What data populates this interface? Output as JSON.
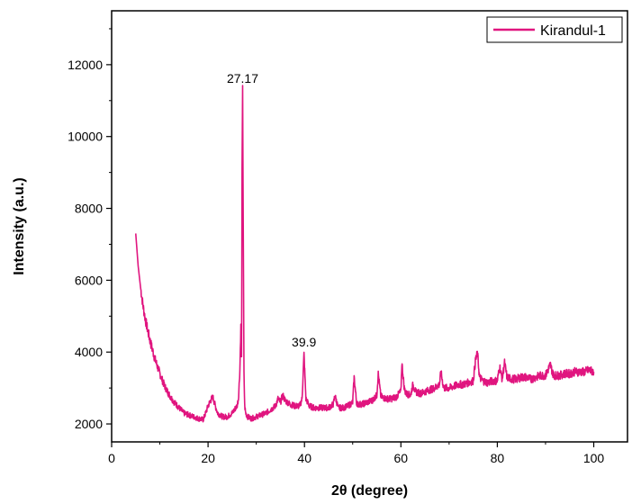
{
  "chart_data": {
    "type": "line",
    "title": "",
    "xlabel": "2θ (degree)",
    "ylabel": "Intensity (a.u.)",
    "xlim": [
      0,
      107
    ],
    "ylim": [
      1500,
      13500
    ],
    "xticks": [
      0,
      20,
      40,
      60,
      80,
      100
    ],
    "yticks": [
      2000,
      4000,
      6000,
      8000,
      10000,
      12000
    ],
    "xtick_labels": [
      "0",
      "20",
      "40",
      "60",
      "80",
      "100"
    ],
    "ytick_labels": [
      "2000",
      "4000",
      "6000",
      "8000",
      "10000",
      "12000"
    ],
    "grid": false,
    "legend_position": "top-right",
    "color": "#e0157f",
    "series": [
      {
        "name": "Kirandul-1",
        "x": [
          5,
          5.5,
          6,
          6.5,
          7,
          7.5,
          8,
          8.5,
          9,
          9.5,
          10,
          11,
          12,
          13,
          14,
          15,
          16,
          17,
          18,
          19,
          19.5,
          20,
          20.5,
          21,
          21.5,
          22,
          23,
          24,
          25,
          25.5,
          26,
          26.3,
          26.6,
          26.8,
          26.95,
          27.05,
          27.17,
          27.3,
          27.45,
          27.6,
          27.8,
          28.2,
          29,
          30,
          31,
          32,
          33,
          34,
          34.5,
          35,
          35.5,
          36,
          36.5,
          37,
          38,
          39,
          39.5,
          39.9,
          40.3,
          41,
          42,
          43,
          44,
          45,
          46,
          46.3,
          46.8,
          47,
          48,
          49,
          50,
          50.3,
          50.8,
          51,
          52,
          53,
          54,
          55,
          55.3,
          55.8,
          56,
          57,
          58,
          59,
          60,
          60.2,
          60.7,
          61,
          62,
          62.5,
          63,
          64,
          65,
          66,
          67,
          68,
          68.3,
          68.8,
          69,
          70,
          71,
          72,
          73,
          74,
          75,
          75.5,
          75.9,
          76.3,
          77,
          78,
          79,
          80,
          80.5,
          81,
          81.5,
          82,
          83,
          84,
          85,
          86,
          87,
          88,
          89,
          90,
          90.5,
          91,
          91.5,
          92,
          93,
          94,
          95,
          96,
          97,
          98,
          99,
          100
        ],
        "y": [
          7300,
          6400,
          5800,
          5300,
          4900,
          4600,
          4300,
          4050,
          3800,
          3600,
          3400,
          3050,
          2800,
          2600,
          2450,
          2300,
          2250,
          2200,
          2150,
          2120,
          2300,
          2500,
          2650,
          2750,
          2500,
          2300,
          2200,
          2200,
          2300,
          2400,
          2500,
          2700,
          3500,
          4700,
          3800,
          9000,
          11300,
          7500,
          3400,
          2500,
          2300,
          2200,
          2150,
          2200,
          2250,
          2300,
          2400,
          2500,
          2700,
          2600,
          2800,
          2650,
          2600,
          2550,
          2500,
          2500,
          2700,
          3950,
          2700,
          2500,
          2450,
          2450,
          2450,
          2450,
          2550,
          2800,
          2550,
          2450,
          2450,
          2500,
          2600,
          3300,
          2600,
          2550,
          2550,
          2600,
          2650,
          2800,
          3400,
          2800,
          2750,
          2700,
          2700,
          2750,
          2900,
          3700,
          3000,
          2850,
          2800,
          3100,
          2900,
          2850,
          2900,
          2950,
          3000,
          3100,
          3450,
          3050,
          3000,
          3000,
          3050,
          3100,
          3100,
          3150,
          3200,
          3800,
          3950,
          3300,
          3200,
          3150,
          3200,
          3200,
          3600,
          3250,
          3700,
          3300,
          3250,
          3250,
          3300,
          3300,
          3250,
          3300,
          3350,
          3350,
          3500,
          3650,
          3400,
          3350,
          3350,
          3400,
          3400,
          3450,
          3450,
          3450,
          3500,
          3450
        ]
      }
    ],
    "annotations": [
      {
        "text": "27.17",
        "x": 27.17,
        "y": 11300
      },
      {
        "text": "39.9",
        "x": 39.9,
        "y": 3950
      }
    ]
  }
}
